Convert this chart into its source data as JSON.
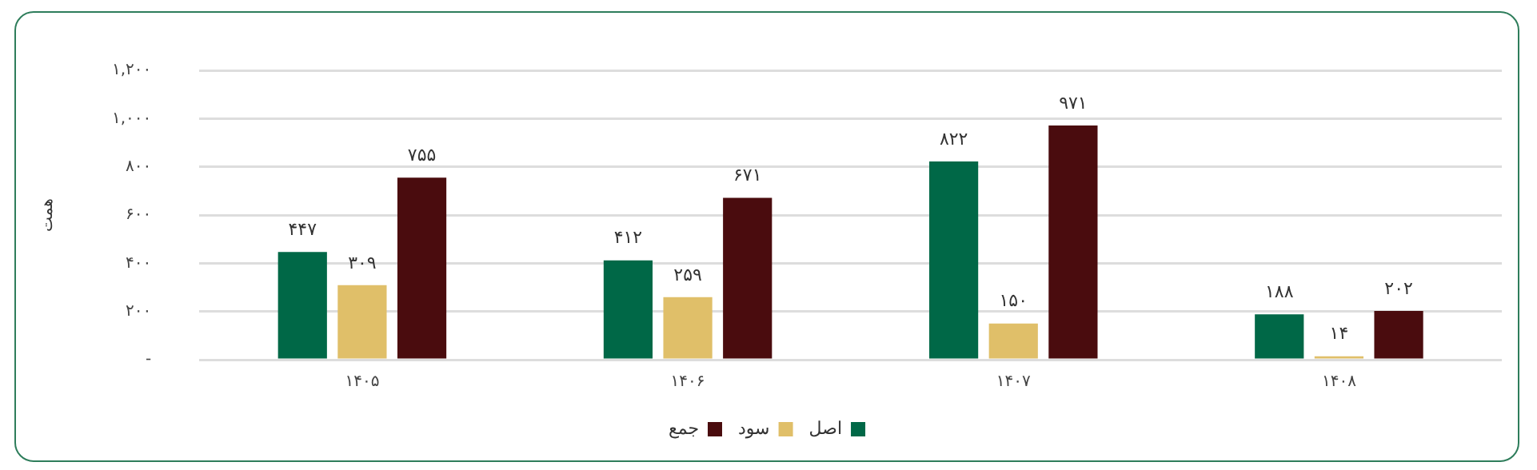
{
  "chart_data": {
    "type": "bar",
    "ylabel": "همت",
    "categories": [
      "۱۴۰۵",
      "۱۴۰۶",
      "۱۴۰۷",
      "۱۴۰۸"
    ],
    "series": [
      {
        "name": "اصل",
        "color": "#006847",
        "values": [
          447,
          412,
          822,
          188
        ],
        "value_labels": [
          "۴۴۷",
          "۴۱۲",
          "۸۲۲",
          "۱۸۸"
        ]
      },
      {
        "name": "سود",
        "color": "#e0bf69",
        "values": [
          309,
          259,
          150,
          14
        ],
        "value_labels": [
          "۳۰۹",
          "۲۵۹",
          "۱۵۰",
          "۱۴"
        ]
      },
      {
        "name": "جمع",
        "color": "#4a0c0e",
        "values": [
          755,
          671,
          971,
          202
        ],
        "value_labels": [
          "۷۵۵",
          "۶۷۱",
          "۹۷۱",
          "۲۰۲"
        ]
      }
    ],
    "ylim": [
      0,
      1200
    ],
    "yticks": [
      {
        "value": 0,
        "label": "-"
      },
      {
        "value": 200,
        "label": "۲۰۰"
      },
      {
        "value": 400,
        "label": "۴۰۰"
      },
      {
        "value": 600,
        "label": "۶۰۰"
      },
      {
        "value": 800,
        "label": "۸۰۰"
      },
      {
        "value": 1000,
        "label": "۱,۰۰۰"
      },
      {
        "value": 1200,
        "label": "۱,۲۰۰"
      }
    ],
    "grid": "y",
    "legend": "bottom"
  }
}
